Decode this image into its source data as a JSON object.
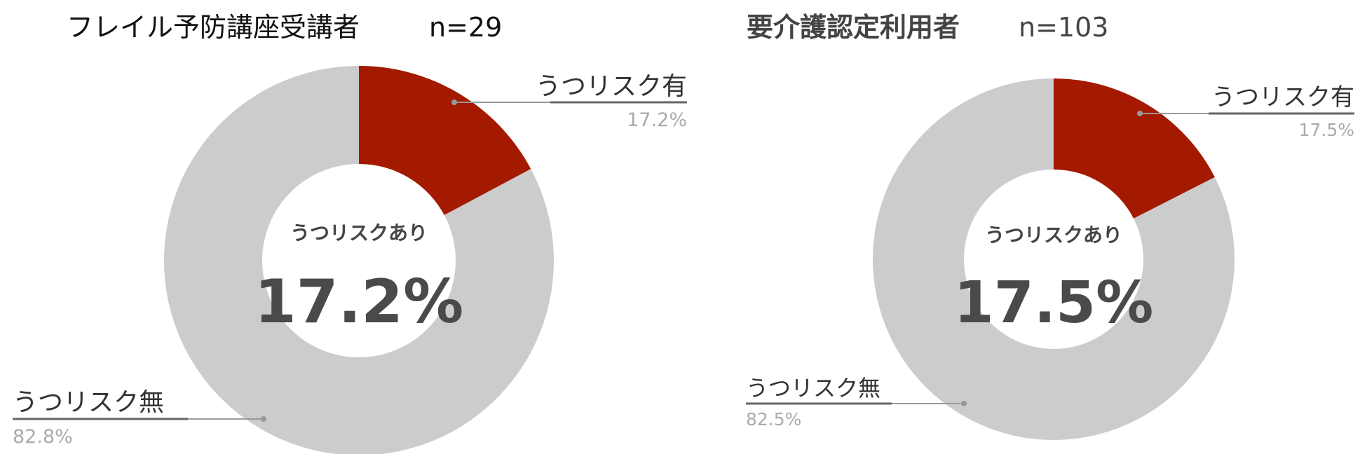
{
  "chart_data": [
    {
      "type": "pie",
      "title": "フレイル予防講座受講者",
      "subtitle": "n=29",
      "categories": [
        "うつリスク有",
        "うつリスク無"
      ],
      "values": [
        17.2,
        82.8
      ],
      "value_labels": [
        "17.2%",
        "82.8%"
      ],
      "colors": [
        "#a31a00",
        "#cccccc"
      ],
      "center_label": "うつリスクあり",
      "center_value": "17.2%",
      "legend": "callout-labels"
    },
    {
      "type": "pie",
      "title": "要介護認定利用者",
      "subtitle": "n=103",
      "categories": [
        "うつリスク有",
        "うつリスク無"
      ],
      "values": [
        17.5,
        82.5
      ],
      "value_labels": [
        "17.5%",
        "82.5%"
      ],
      "colors": [
        "#a31a00",
        "#cccccc"
      ],
      "center_label": "うつリスクあり",
      "center_value": "17.5%",
      "legend": "callout-labels"
    }
  ]
}
